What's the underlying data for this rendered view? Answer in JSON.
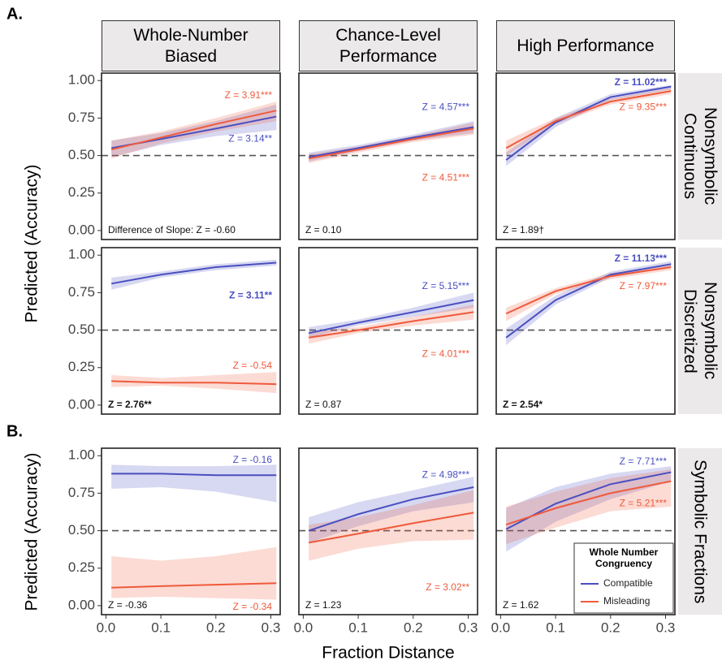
{
  "chart_data": {
    "type": "line",
    "xlabel": "Fraction Distance",
    "ylabel": "Predicted (Accuracy)",
    "section_labels": [
      "A.",
      "B."
    ],
    "columns": [
      "Whole-Number Biased",
      "Chance-Level Performance",
      "High Performance"
    ],
    "rows": [
      "Nonsymbolic Continuous",
      "Nonsymbolic Discretized",
      "Symbolic Fractions"
    ],
    "xlim": [
      -0.008,
      0.317
    ],
    "ylim": [
      -0.06,
      1.05
    ],
    "xticks": [
      {
        "value": 0,
        "label": "0.0"
      },
      {
        "value": 0.1,
        "label": "0.1"
      },
      {
        "value": 0.2,
        "label": "0.2"
      },
      {
        "value": 0.3,
        "label": "0.3"
      }
    ],
    "yticks": [
      {
        "value": 0,
        "label": "0.00"
      },
      {
        "value": 0.25,
        "label": "0.25"
      },
      {
        "value": 0.5,
        "label": "0.50"
      },
      {
        "value": 0.75,
        "label": "0.75"
      },
      {
        "value": 1,
        "label": "1.00"
      }
    ],
    "reference_line": 0.5,
    "legend": {
      "title": "Whole Number Congruency",
      "corner": "bottom-right"
    },
    "series": [
      {
        "name": "Compatible",
        "color": "#4a4fc0"
      },
      {
        "name": "Misleading",
        "color": "#ef5a3c"
      }
    ],
    "x": [
      0.01,
      0.1,
      0.2,
      0.31
    ],
    "panels": [
      {
        "lines": [
          {
            "values": [
              0.55,
              0.61,
              0.68,
              0.76
            ],
            "lower": [
              0.49,
              0.57,
              0.63,
              0.67
            ],
            "upper": [
              0.6,
              0.65,
              0.73,
              0.84
            ],
            "z_label": "Z = 3.14**"
          },
          {
            "values": [
              0.54,
              0.62,
              0.71,
              0.8
            ],
            "lower": [
              0.48,
              0.58,
              0.66,
              0.73
            ],
            "upper": [
              0.6,
              0.66,
              0.75,
              0.86
            ],
            "z_label": "Z = 3.91***"
          }
        ],
        "note": "Difference of Slope: Z = -0.60"
      },
      {
        "lines": [
          {
            "values": [
              0.49,
              0.55,
              0.62,
              0.69
            ],
            "lower": [
              0.46,
              0.53,
              0.6,
              0.65
            ],
            "upper": [
              0.52,
              0.57,
              0.64,
              0.73
            ],
            "z_label": "Z = 4.57***"
          },
          {
            "values": [
              0.48,
              0.54,
              0.61,
              0.68
            ],
            "lower": [
              0.45,
              0.52,
              0.59,
              0.64
            ],
            "upper": [
              0.51,
              0.56,
              0.63,
              0.72
            ],
            "z_label": "Z = 4.51***"
          }
        ],
        "note": "Z = 0.10"
      },
      {
        "lines": [
          {
            "values": [
              0.47,
              0.72,
              0.89,
              0.96
            ],
            "lower": [
              0.43,
              0.69,
              0.87,
              0.94
            ],
            "upper": [
              0.52,
              0.75,
              0.91,
              0.97
            ],
            "z_label": "Z = 11.02***",
            "bold": true
          },
          {
            "values": [
              0.55,
              0.73,
              0.86,
              0.93
            ],
            "lower": [
              0.5,
              0.71,
              0.84,
              0.91
            ],
            "upper": [
              0.6,
              0.75,
              0.88,
              0.95
            ],
            "z_label": "Z = 9.35***"
          }
        ],
        "note": "Z = 1.89†"
      },
      {
        "lines": [
          {
            "values": [
              0.81,
              0.87,
              0.92,
              0.95
            ],
            "lower": [
              0.77,
              0.85,
              0.9,
              0.93
            ],
            "upper": [
              0.85,
              0.89,
              0.94,
              0.97
            ],
            "z_label": "Z = 3.11**",
            "bold": true
          },
          {
            "values": [
              0.16,
              0.15,
              0.15,
              0.14
            ],
            "lower": [
              0.12,
              0.13,
              0.11,
              0.08
            ],
            "upper": [
              0.2,
              0.18,
              0.2,
              0.22
            ],
            "z_label": "Z = -0.54"
          }
        ],
        "note": "Z = 2.76**",
        "note_bold": true
      },
      {
        "lines": [
          {
            "values": [
              0.48,
              0.55,
              0.62,
              0.7
            ],
            "lower": [
              0.45,
              0.53,
              0.59,
              0.65
            ],
            "upper": [
              0.52,
              0.57,
              0.65,
              0.75
            ],
            "z_label": "Z = 5.15***"
          },
          {
            "values": [
              0.45,
              0.5,
              0.56,
              0.62
            ],
            "lower": [
              0.41,
              0.48,
              0.53,
              0.57
            ],
            "upper": [
              0.49,
              0.52,
              0.59,
              0.67
            ],
            "z_label": "Z = 4.01***"
          }
        ],
        "note": "Z = 0.87"
      },
      {
        "lines": [
          {
            "values": [
              0.45,
              0.7,
              0.87,
              0.94
            ],
            "lower": [
              0.4,
              0.67,
              0.85,
              0.92
            ],
            "upper": [
              0.51,
              0.73,
              0.89,
              0.96
            ],
            "z_label": "Z = 11.13***",
            "bold": true
          },
          {
            "values": [
              0.61,
              0.76,
              0.86,
              0.92
            ],
            "lower": [
              0.56,
              0.74,
              0.84,
              0.9
            ],
            "upper": [
              0.65,
              0.78,
              0.88,
              0.94
            ],
            "z_label": "Z = 7.97***"
          }
        ],
        "note": "Z = 2.54*",
        "note_bold": true
      },
      {
        "lines": [
          {
            "values": [
              0.88,
              0.88,
              0.87,
              0.87
            ],
            "lower": [
              0.78,
              0.79,
              0.76,
              0.69
            ],
            "upper": [
              0.94,
              0.93,
              0.93,
              0.94
            ],
            "z_label": "Z = -0.16"
          },
          {
            "values": [
              0.12,
              0.13,
              0.14,
              0.15
            ],
            "lower": [
              0.05,
              0.06,
              0.05,
              0.04
            ],
            "upper": [
              0.33,
              0.3,
              0.33,
              0.39
            ],
            "z_label": "Z = -0.34"
          }
        ],
        "note": "Z = -0.36"
      },
      {
        "lines": [
          {
            "values": [
              0.5,
              0.61,
              0.71,
              0.79
            ],
            "lower": [
              0.42,
              0.53,
              0.63,
              0.69
            ],
            "upper": [
              0.59,
              0.69,
              0.77,
              0.86
            ],
            "z_label": "Z = 4.98***"
          },
          {
            "values": [
              0.42,
              0.48,
              0.55,
              0.62
            ],
            "lower": [
              0.3,
              0.38,
              0.43,
              0.44
            ],
            "upper": [
              0.54,
              0.59,
              0.67,
              0.77
            ],
            "z_label": "Z = 3.02**"
          }
        ],
        "note": "Z = 1.23"
      },
      {
        "lines": [
          {
            "values": [
              0.51,
              0.68,
              0.81,
              0.89
            ],
            "lower": [
              0.36,
              0.56,
              0.71,
              0.83
            ],
            "upper": [
              0.65,
              0.79,
              0.88,
              0.93
            ],
            "z_label": "Z = 7.71***"
          },
          {
            "values": [
              0.54,
              0.65,
              0.75,
              0.83
            ],
            "lower": [
              0.41,
              0.52,
              0.63,
              0.66
            ],
            "upper": [
              0.66,
              0.76,
              0.85,
              0.91
            ],
            "z_label": "Z = 5.21***"
          }
        ],
        "note": "Z = 1.62"
      }
    ]
  }
}
